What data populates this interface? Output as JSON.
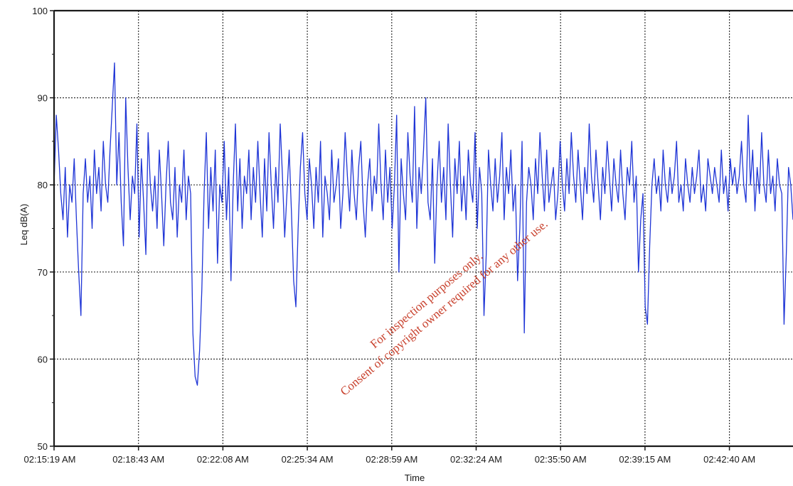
{
  "chart_data": {
    "type": "line",
    "title": "",
    "xlabel": "Time",
    "ylabel": "Leq dB(A)",
    "ylim": [
      50,
      100
    ],
    "yticks": [
      50,
      60,
      70,
      80,
      90,
      100
    ],
    "x_ticks": [
      "02:15:19 AM",
      "02:18:43 AM",
      "02:22:08 AM",
      "02:25:34 AM",
      "02:28:59 AM",
      "02:32:24 AM",
      "02:35:50 AM",
      "02:39:15 AM",
      "02:42:40 AM"
    ],
    "grid": true,
    "legend": "none",
    "line_color": "#1f35d6",
    "series": [
      {
        "values": [
          80,
          88,
          84,
          79,
          76,
          82,
          74,
          80,
          78,
          83,
          76,
          70,
          65,
          79,
          83,
          78,
          81,
          75,
          84,
          79,
          82,
          77,
          85,
          80,
          78,
          84,
          89,
          94,
          80,
          86,
          78,
          73,
          90,
          82,
          76,
          81,
          79,
          87,
          74,
          83,
          78,
          72,
          86,
          80,
          77,
          81,
          75,
          84,
          79,
          73,
          80,
          85,
          78,
          76,
          82,
          74,
          80,
          78,
          84,
          76,
          81,
          79,
          63,
          58,
          57,
          61,
          68,
          79,
          86,
          75,
          82,
          77,
          84,
          71,
          80,
          78,
          85,
          76,
          82,
          69,
          80,
          87,
          77,
          83,
          75,
          81,
          79,
          84,
          76,
          82,
          78,
          85,
          79,
          74,
          83,
          77,
          86,
          80,
          75,
          82,
          78,
          87,
          81,
          74,
          79,
          84,
          77,
          69,
          66,
          75,
          82,
          86,
          79,
          76,
          83,
          80,
          75,
          82,
          78,
          85,
          74,
          81,
          79,
          76,
          84,
          78,
          80,
          83,
          75,
          79,
          86,
          81,
          77,
          84,
          79,
          76,
          82,
          85,
          78,
          74,
          80,
          83,
          77,
          81,
          79,
          87,
          80,
          76,
          84,
          78,
          82,
          75,
          80,
          88,
          70,
          83,
          79,
          76,
          86,
          81,
          78,
          89,
          75,
          82,
          79,
          84,
          90,
          78,
          76,
          83,
          71,
          80,
          85,
          78,
          82,
          76,
          87,
          80,
          74,
          83,
          79,
          85,
          77,
          81,
          76,
          84,
          80,
          78,
          86,
          75,
          82,
          79,
          65,
          72,
          84,
          80,
          77,
          83,
          78,
          81,
          86,
          76,
          82,
          79,
          84,
          77,
          80,
          69,
          75,
          85,
          63,
          78,
          82,
          80,
          76,
          83,
          79,
          86,
          81,
          77,
          84,
          78,
          80,
          82,
          76,
          79,
          85,
          80,
          77,
          83,
          79,
          86,
          81,
          78,
          84,
          80,
          76,
          82,
          79,
          87,
          81,
          78,
          84,
          80,
          76,
          82,
          79,
          85,
          81,
          77,
          83,
          80,
          78,
          84,
          79,
          76,
          82,
          80,
          85,
          78,
          81,
          70,
          76,
          79,
          66,
          64,
          73,
          80,
          83,
          79,
          81,
          77,
          84,
          80,
          78,
          82,
          79,
          81,
          85,
          78,
          80,
          77,
          83,
          80,
          78,
          82,
          79,
          81,
          84,
          78,
          80,
          77,
          83,
          81,
          79,
          82,
          80,
          78,
          84,
          79,
          81,
          77,
          83,
          80,
          82,
          79,
          81,
          85,
          80,
          78,
          88,
          80,
          84,
          77,
          82,
          79,
          86,
          80,
          78,
          84,
          79,
          81,
          77,
          83,
          80,
          79,
          64,
          72,
          82,
          80,
          76
        ]
      }
    ]
  },
  "watermark": {
    "line1": "For inspection purposes only.",
    "line2": "Consent of copyright owner required for any other use."
  }
}
